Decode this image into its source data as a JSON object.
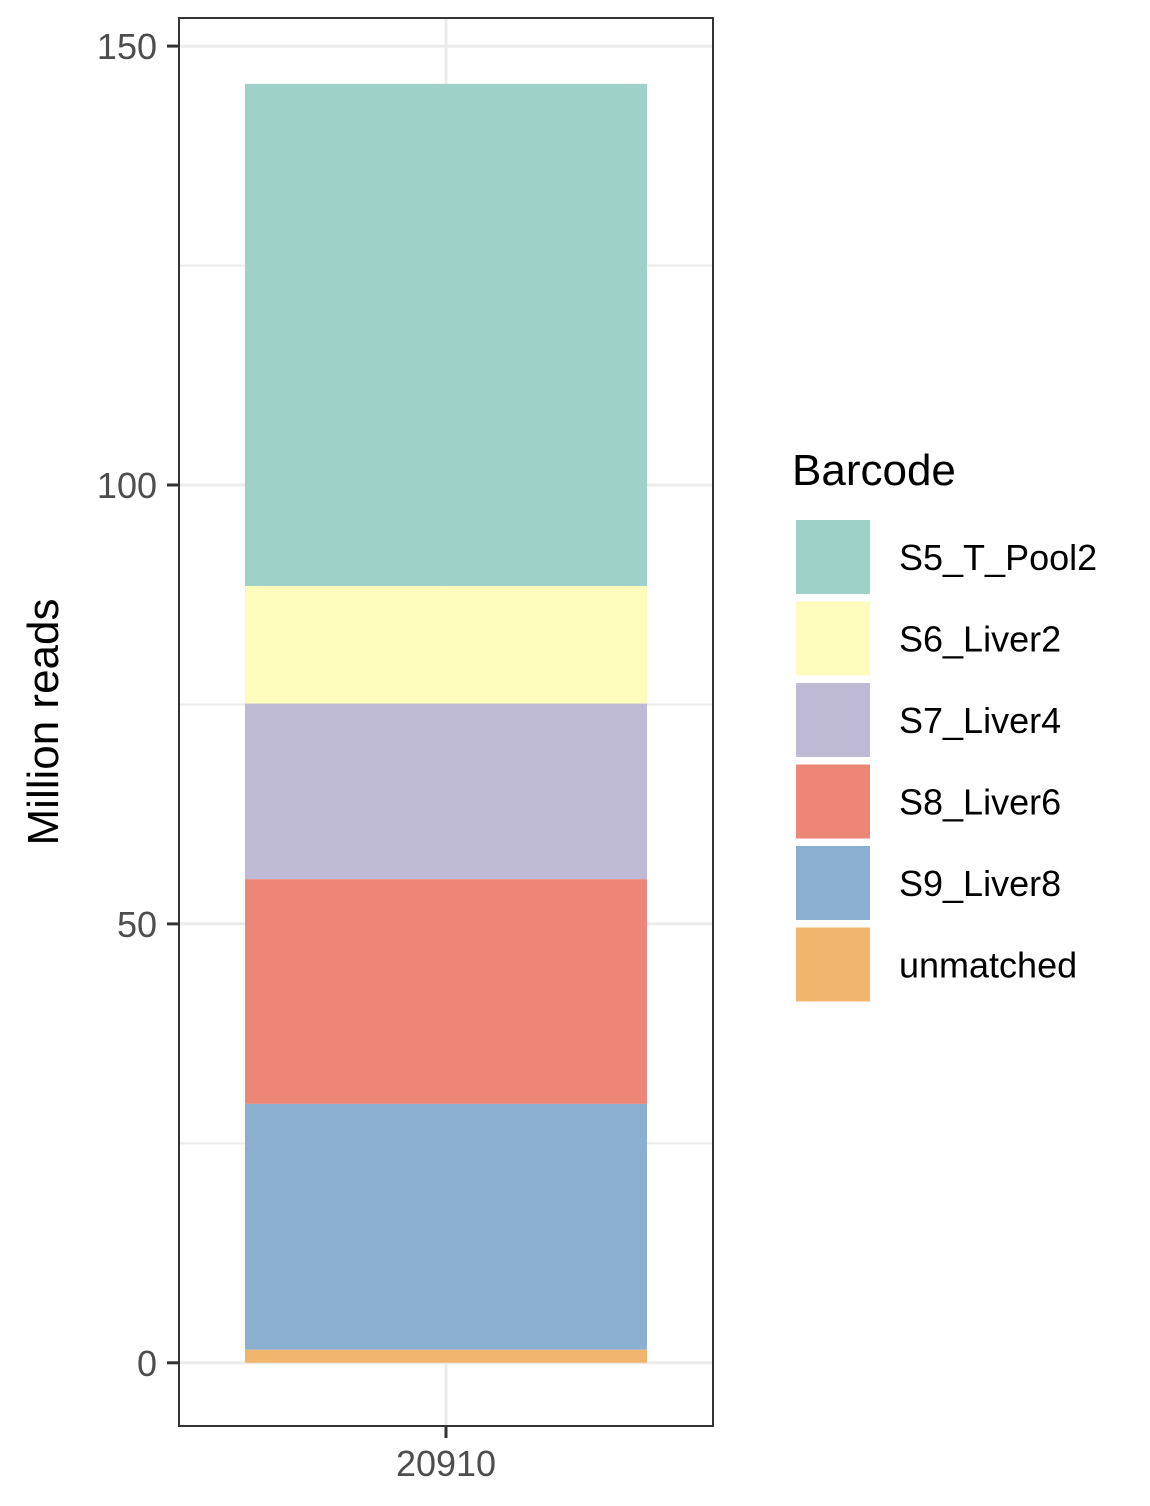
{
  "chart_data": {
    "type": "bar",
    "stacked": true,
    "categories": [
      "20910"
    ],
    "series": [
      {
        "name": "unmatched",
        "values": [
          1.5
        ],
        "color": "#F1B56E"
      },
      {
        "name": "S9_Liver8",
        "values": [
          28.0
        ],
        "color": "#8AAFD1"
      },
      {
        "name": "S8_Liver6",
        "values": [
          25.6
        ],
        "color": "#EC8677"
      },
      {
        "name": "S7_Liver4",
        "values": [
          20.0
        ],
        "color": "#BEBAD6"
      },
      {
        "name": "S6_Liver2",
        "values": [
          13.4
        ],
        "color": "#FDFCBC"
      },
      {
        "name": "S5_T_Pool2",
        "values": [
          57.2
        ],
        "color": "#9ED1C7"
      }
    ],
    "xlabel": "",
    "ylabel": "Million reads",
    "ylim": [
      -7.2,
      153.2
    ],
    "yticks": [
      0,
      50,
      100,
      150
    ],
    "ytick_labels": [
      "0",
      "50",
      "100",
      "150"
    ],
    "grid": true,
    "legend": {
      "title": "Barcode",
      "placement": "right",
      "order": [
        "S5_T_Pool2",
        "S6_Liver2",
        "S7_Liver4",
        "S8_Liver6",
        "S9_Liver8",
        "unmatched"
      ]
    }
  }
}
